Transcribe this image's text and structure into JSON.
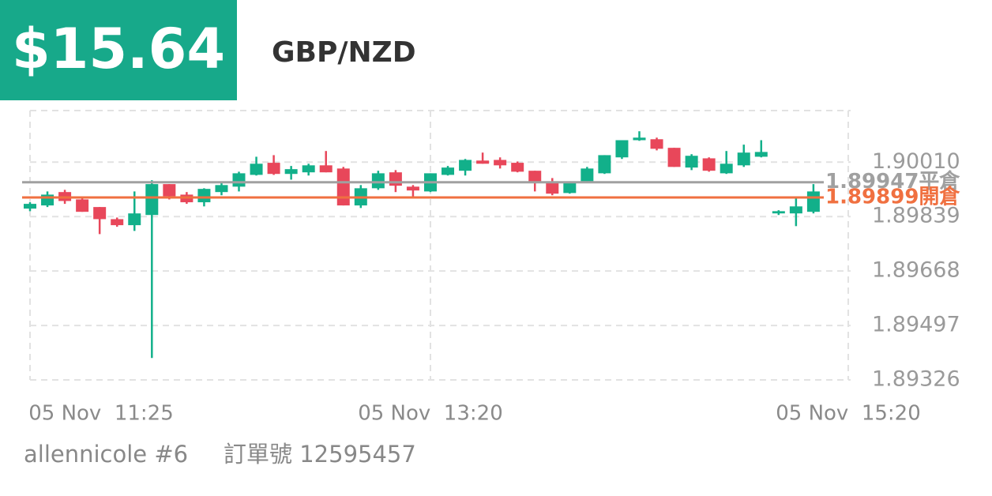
{
  "header": {
    "profit": "$15.64",
    "symbol": "GBP/NZD"
  },
  "chart_data": {
    "type": "candlestick",
    "up_color": "#12b08a",
    "down_color": "#e8475a",
    "series": [
      {
        "open": [
          1.89864,
          1.89874,
          1.89916,
          1.89893,
          1.89869,
          1.89831,
          1.89812,
          1.89844,
          1.89941,
          1.89908,
          1.89884,
          1.89916,
          1.89933,
          1.8997,
          1.90008,
          1.89973,
          1.89978,
          1.9,
          1.8999,
          1.89874,
          1.89928,
          1.89978,
          1.89933,
          1.89918,
          1.8997,
          1.89983,
          1.90015,
          1.90017,
          1.90008,
          1.89983,
          1.89948,
          1.89913,
          1.8995,
          1.89975,
          1.90025,
          1.90079,
          1.90082,
          1.90055,
          1.89993,
          1.90022,
          1.89975,
          1.9,
          1.90027,
          1.89849,
          1.89849,
          1.89854
        ],
        "high": [
          1.89884,
          1.89918,
          1.89923,
          1.89898,
          1.89869,
          1.89836,
          1.89918,
          1.89953,
          1.89941,
          1.89916,
          1.89928,
          1.89946,
          1.8998,
          1.90027,
          1.90032,
          1.89998,
          1.90005,
          1.90045,
          1.89995,
          1.89938,
          1.89983,
          1.89985,
          1.89938,
          1.89975,
          1.89998,
          1.9002,
          1.9004,
          1.90025,
          1.90012,
          1.89983,
          1.8996,
          1.8995,
          1.89995,
          1.90032,
          1.90079,
          1.90107,
          1.90087,
          1.90055,
          1.90035,
          1.90025,
          1.90045,
          1.90065,
          1.90079,
          1.89859,
          1.89898,
          1.89941
        ],
        "low": [
          1.89856,
          1.89869,
          1.89879,
          1.89854,
          1.89784,
          1.89807,
          1.89794,
          1.89395,
          1.89893,
          1.89879,
          1.89871,
          1.89906,
          1.89918,
          1.89968,
          1.8997,
          1.89955,
          1.89968,
          1.89978,
          1.89874,
          1.89866,
          1.89923,
          1.89916,
          1.89901,
          1.89916,
          1.89968,
          1.89968,
          1.90005,
          1.8999,
          1.89978,
          1.89918,
          1.89906,
          1.89911,
          1.89946,
          1.89973,
          1.9002,
          1.90077,
          1.90047,
          1.89995,
          1.89985,
          1.8998,
          1.89973,
          1.89995,
          1.90025,
          1.89844,
          1.89809,
          1.89849
        ],
        "close": [
          1.89879,
          1.89908,
          1.89888,
          1.89854,
          1.89831,
          1.89812,
          1.89849,
          1.89941,
          1.89903,
          1.89884,
          1.89926,
          1.89938,
          1.89975,
          1.90005,
          1.89973,
          1.89988,
          1.9,
          1.89978,
          1.89874,
          1.89928,
          1.89975,
          1.89936,
          1.89921,
          1.89975,
          1.89993,
          1.90017,
          1.90005,
          1.9,
          1.8998,
          1.89946,
          1.89911,
          1.89946,
          1.8999,
          1.90032,
          1.90079,
          1.90087,
          1.90052,
          1.89995,
          1.9003,
          1.89983,
          1.90005,
          1.9004,
          1.90042,
          1.89856,
          1.89871,
          1.89918
        ]
      }
    ],
    "ylim": [
      1.89326,
      1.90172
    ],
    "yticks": [
      {
        "value": 1.9001,
        "label": "1.90010"
      },
      1.89839,
      1.89668,
      1.89497,
      1.89326
    ],
    "xlim": [
      0,
      47
    ],
    "xticks": [
      {
        "value": 0,
        "label": "05 Nov  11:25"
      },
      {
        "value": 23,
        "label": "05 Nov  13:20"
      },
      {
        "value": 47,
        "label": "05 Nov  15:20"
      }
    ],
    "grid": true,
    "lines": [
      {
        "value": 1.89947,
        "label": "1.89947平倉",
        "color": "#a0a0a0"
      },
      {
        "value": 1.89899,
        "label": "1.89899開倉",
        "color": "#f07040"
      }
    ]
  },
  "footer": {
    "user": "allennicole #6",
    "order": "訂單號 12595457"
  }
}
